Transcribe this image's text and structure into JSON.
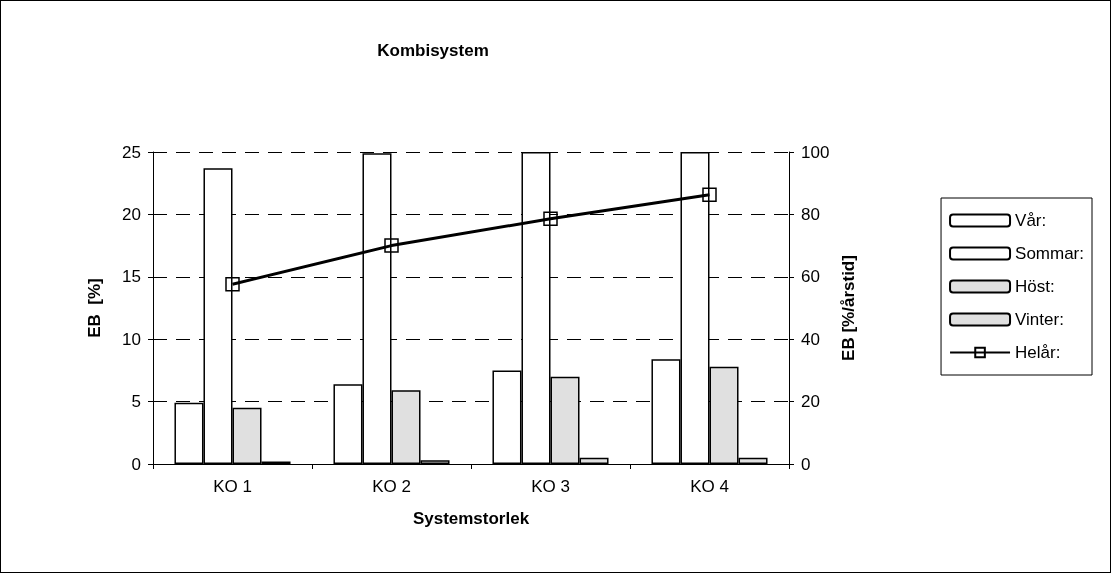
{
  "chart_data": {
    "type": "bar",
    "title": "Kombisystem",
    "xlabel": "Systemstorlek",
    "ylabel": "EB  [%]",
    "y2label": "EB [%/årstid]",
    "categories": [
      "KO 1",
      "KO 2",
      "KO 3",
      "KO 4"
    ],
    "series": [
      {
        "name": "Vår:",
        "color": "#ffffff",
        "values": [
          4.9,
          6.4,
          7.5,
          8.4
        ]
      },
      {
        "name": "Sommar:",
        "color": "#ffffff",
        "values": [
          23.7,
          24.9,
          25,
          25
        ]
      },
      {
        "name": "Höst:",
        "color": "#e0e0e0",
        "values": [
          4.5,
          5.9,
          7.0,
          7.8
        ]
      },
      {
        "name": "Vinter:",
        "color": "#e0e0e0",
        "values": [
          0.2,
          0.3,
          0.5,
          0.5
        ]
      },
      {
        "name": "Helår:",
        "type": "line",
        "axis": "y2",
        "color": "#000000",
        "marker": "square",
        "values": [
          57.6,
          70,
          78.6,
          86.3
        ]
      }
    ],
    "ylim": [
      0,
      25
    ],
    "yticks": [
      0,
      5,
      10,
      15,
      20,
      25
    ],
    "y2lim": [
      0,
      100
    ],
    "y2ticks": [
      0,
      20,
      40,
      60,
      80,
      100
    ],
    "grid": "y",
    "legend": "right"
  }
}
